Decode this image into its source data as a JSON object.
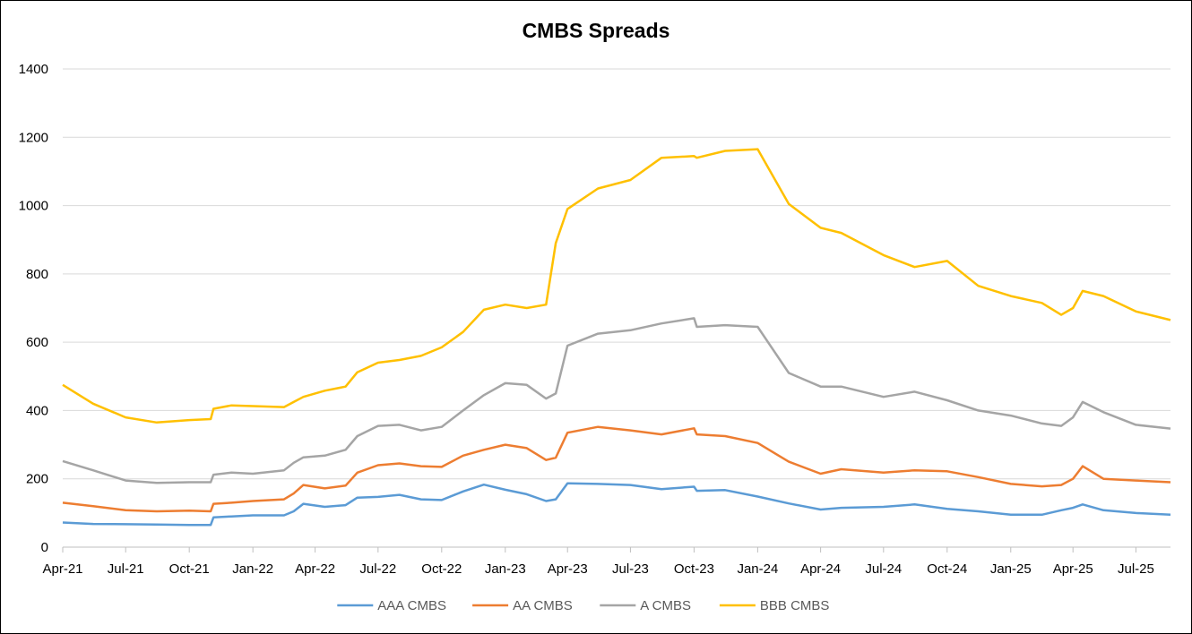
{
  "chart_data": {
    "type": "line",
    "title": "CMBS Spreads",
    "xlabel": "",
    "ylabel": "",
    "ylim": [
      0,
      1400
    ],
    "yticks": [
      0,
      200,
      400,
      600,
      800,
      1000,
      1200,
      1400
    ],
    "xlim": [
      "2021-04-01",
      "2025-08-20"
    ],
    "xticks": [
      {
        "date": "2021-04-01",
        "label": "Apr-21"
      },
      {
        "date": "2021-07-01",
        "label": "Jul-21"
      },
      {
        "date": "2021-10-01",
        "label": "Oct-21"
      },
      {
        "date": "2022-01-01",
        "label": "Jan-22"
      },
      {
        "date": "2022-04-01",
        "label": "Apr-22"
      },
      {
        "date": "2022-07-01",
        "label": "Jul-22"
      },
      {
        "date": "2022-10-01",
        "label": "Oct-22"
      },
      {
        "date": "2023-01-01",
        "label": "Jan-23"
      },
      {
        "date": "2023-04-01",
        "label": "Apr-23"
      },
      {
        "date": "2023-07-01",
        "label": "Jul-23"
      },
      {
        "date": "2023-10-01",
        "label": "Oct-23"
      },
      {
        "date": "2024-01-01",
        "label": "Jan-24"
      },
      {
        "date": "2024-04-01",
        "label": "Apr-24"
      },
      {
        "date": "2024-07-01",
        "label": "Jul-24"
      },
      {
        "date": "2024-10-01",
        "label": "Oct-24"
      },
      {
        "date": "2025-01-01",
        "label": "Jan-25"
      },
      {
        "date": "2025-04-01",
        "label": "Apr-25"
      },
      {
        "date": "2025-07-01",
        "label": "Jul-25"
      }
    ],
    "grid": true,
    "legend_position": "bottom",
    "series": [
      {
        "name": "AAA CMBS",
        "color": "#5B9BD5",
        "points": [
          [
            "2021-04-01",
            72
          ],
          [
            "2021-05-15",
            68
          ],
          [
            "2021-07-01",
            67
          ],
          [
            "2021-08-15",
            66
          ],
          [
            "2021-10-01",
            65
          ],
          [
            "2021-11-01",
            65
          ],
          [
            "2021-11-05",
            87
          ],
          [
            "2021-12-01",
            90
          ],
          [
            "2022-01-01",
            93
          ],
          [
            "2022-02-15",
            93
          ],
          [
            "2022-03-01",
            105
          ],
          [
            "2022-03-15",
            127
          ],
          [
            "2022-04-15",
            118
          ],
          [
            "2022-05-15",
            123
          ],
          [
            "2022-06-01",
            145
          ],
          [
            "2022-07-01",
            147
          ],
          [
            "2022-08-01",
            153
          ],
          [
            "2022-09-01",
            140
          ],
          [
            "2022-10-01",
            138
          ],
          [
            "2022-11-01",
            163
          ],
          [
            "2022-12-01",
            183
          ],
          [
            "2023-01-01",
            168
          ],
          [
            "2023-02-01",
            155
          ],
          [
            "2023-03-01",
            135
          ],
          [
            "2023-03-15",
            140
          ],
          [
            "2023-04-01",
            187
          ],
          [
            "2023-05-15",
            185
          ],
          [
            "2023-07-01",
            182
          ],
          [
            "2023-08-15",
            170
          ],
          [
            "2023-10-01",
            177
          ],
          [
            "2023-10-05",
            165
          ],
          [
            "2023-11-15",
            167
          ],
          [
            "2024-01-01",
            148
          ],
          [
            "2024-02-15",
            128
          ],
          [
            "2024-04-01",
            110
          ],
          [
            "2024-05-01",
            115
          ],
          [
            "2024-07-01",
            118
          ],
          [
            "2024-08-15",
            125
          ],
          [
            "2024-10-01",
            112
          ],
          [
            "2024-11-15",
            105
          ],
          [
            "2025-01-01",
            95
          ],
          [
            "2025-02-15",
            95
          ],
          [
            "2025-03-15",
            108
          ],
          [
            "2025-04-01",
            115
          ],
          [
            "2025-04-15",
            125
          ],
          [
            "2025-05-15",
            108
          ],
          [
            "2025-07-01",
            100
          ],
          [
            "2025-08-20",
            95
          ]
        ]
      },
      {
        "name": "AA CMBS",
        "color": "#ED7D31",
        "points": [
          [
            "2021-04-01",
            130
          ],
          [
            "2021-05-15",
            120
          ],
          [
            "2021-07-01",
            108
          ],
          [
            "2021-08-15",
            105
          ],
          [
            "2021-10-01",
            107
          ],
          [
            "2021-11-01",
            105
          ],
          [
            "2021-11-05",
            127
          ],
          [
            "2021-12-01",
            130
          ],
          [
            "2022-01-01",
            135
          ],
          [
            "2022-02-15",
            140
          ],
          [
            "2022-03-01",
            157
          ],
          [
            "2022-03-15",
            182
          ],
          [
            "2022-04-15",
            172
          ],
          [
            "2022-05-15",
            180
          ],
          [
            "2022-06-01",
            218
          ],
          [
            "2022-07-01",
            240
          ],
          [
            "2022-08-01",
            245
          ],
          [
            "2022-09-01",
            237
          ],
          [
            "2022-10-01",
            235
          ],
          [
            "2022-11-01",
            268
          ],
          [
            "2022-12-01",
            285
          ],
          [
            "2023-01-01",
            300
          ],
          [
            "2023-02-01",
            290
          ],
          [
            "2023-03-01",
            255
          ],
          [
            "2023-03-15",
            262
          ],
          [
            "2023-04-01",
            335
          ],
          [
            "2023-05-15",
            352
          ],
          [
            "2023-07-01",
            342
          ],
          [
            "2023-08-15",
            330
          ],
          [
            "2023-10-01",
            348
          ],
          [
            "2023-10-05",
            330
          ],
          [
            "2023-11-15",
            325
          ],
          [
            "2024-01-01",
            305
          ],
          [
            "2024-02-15",
            250
          ],
          [
            "2024-04-01",
            215
          ],
          [
            "2024-05-01",
            228
          ],
          [
            "2024-07-01",
            218
          ],
          [
            "2024-08-15",
            225
          ],
          [
            "2024-10-01",
            222
          ],
          [
            "2024-11-15",
            205
          ],
          [
            "2025-01-01",
            185
          ],
          [
            "2025-02-15",
            178
          ],
          [
            "2025-03-15",
            182
          ],
          [
            "2025-04-01",
            200
          ],
          [
            "2025-04-15",
            237
          ],
          [
            "2025-05-15",
            200
          ],
          [
            "2025-07-01",
            195
          ],
          [
            "2025-08-20",
            190
          ]
        ]
      },
      {
        "name": "A CMBS",
        "color": "#A5A5A5",
        "points": [
          [
            "2021-04-01",
            252
          ],
          [
            "2021-05-15",
            225
          ],
          [
            "2021-07-01",
            195
          ],
          [
            "2021-08-15",
            188
          ],
          [
            "2021-10-01",
            190
          ],
          [
            "2021-11-01",
            190
          ],
          [
            "2021-11-05",
            212
          ],
          [
            "2021-12-01",
            218
          ],
          [
            "2022-01-01",
            215
          ],
          [
            "2022-02-15",
            225
          ],
          [
            "2022-03-01",
            247
          ],
          [
            "2022-03-15",
            263
          ],
          [
            "2022-04-15",
            268
          ],
          [
            "2022-05-15",
            285
          ],
          [
            "2022-06-01",
            325
          ],
          [
            "2022-07-01",
            355
          ],
          [
            "2022-08-01",
            358
          ],
          [
            "2022-09-01",
            342
          ],
          [
            "2022-10-01",
            352
          ],
          [
            "2022-11-01",
            400
          ],
          [
            "2022-12-01",
            445
          ],
          [
            "2023-01-01",
            480
          ],
          [
            "2023-02-01",
            475
          ],
          [
            "2023-03-01",
            435
          ],
          [
            "2023-03-15",
            450
          ],
          [
            "2023-04-01",
            590
          ],
          [
            "2023-05-15",
            625
          ],
          [
            "2023-07-01",
            635
          ],
          [
            "2023-08-15",
            655
          ],
          [
            "2023-10-01",
            670
          ],
          [
            "2023-10-05",
            645
          ],
          [
            "2023-11-15",
            650
          ],
          [
            "2024-01-01",
            645
          ],
          [
            "2024-02-15",
            510
          ],
          [
            "2024-04-01",
            470
          ],
          [
            "2024-05-01",
            470
          ],
          [
            "2024-07-01",
            440
          ],
          [
            "2024-08-15",
            455
          ],
          [
            "2024-10-01",
            430
          ],
          [
            "2024-11-15",
            400
          ],
          [
            "2025-01-01",
            385
          ],
          [
            "2025-02-15",
            362
          ],
          [
            "2025-03-15",
            355
          ],
          [
            "2025-04-01",
            380
          ],
          [
            "2025-04-15",
            425
          ],
          [
            "2025-05-15",
            395
          ],
          [
            "2025-07-01",
            358
          ],
          [
            "2025-08-20",
            347
          ]
        ]
      },
      {
        "name": "BBB CMBS",
        "color": "#FFC000",
        "points": [
          [
            "2021-04-01",
            475
          ],
          [
            "2021-05-15",
            420
          ],
          [
            "2021-07-01",
            380
          ],
          [
            "2021-08-15",
            365
          ],
          [
            "2021-10-01",
            372
          ],
          [
            "2021-11-01",
            375
          ],
          [
            "2021-11-05",
            405
          ],
          [
            "2021-12-01",
            415
          ],
          [
            "2022-01-01",
            413
          ],
          [
            "2022-02-15",
            410
          ],
          [
            "2022-03-01",
            425
          ],
          [
            "2022-03-15",
            440
          ],
          [
            "2022-04-15",
            458
          ],
          [
            "2022-05-15",
            470
          ],
          [
            "2022-06-01",
            512
          ],
          [
            "2022-07-01",
            540
          ],
          [
            "2022-08-01",
            548
          ],
          [
            "2022-09-01",
            560
          ],
          [
            "2022-10-01",
            585
          ],
          [
            "2022-11-01",
            630
          ],
          [
            "2022-12-01",
            695
          ],
          [
            "2023-01-01",
            710
          ],
          [
            "2023-02-01",
            700
          ],
          [
            "2023-03-01",
            710
          ],
          [
            "2023-03-15",
            890
          ],
          [
            "2023-04-01",
            990
          ],
          [
            "2023-05-15",
            1050
          ],
          [
            "2023-07-01",
            1075
          ],
          [
            "2023-08-15",
            1140
          ],
          [
            "2023-10-01",
            1145
          ],
          [
            "2023-10-05",
            1140
          ],
          [
            "2023-11-15",
            1160
          ],
          [
            "2024-01-01",
            1165
          ],
          [
            "2024-02-15",
            1005
          ],
          [
            "2024-04-01",
            935
          ],
          [
            "2024-05-01",
            920
          ],
          [
            "2024-07-01",
            855
          ],
          [
            "2024-08-15",
            820
          ],
          [
            "2024-10-01",
            838
          ],
          [
            "2024-11-15",
            765
          ],
          [
            "2025-01-01",
            735
          ],
          [
            "2025-02-15",
            715
          ],
          [
            "2025-03-15",
            680
          ],
          [
            "2025-04-01",
            700
          ],
          [
            "2025-04-15",
            750
          ],
          [
            "2025-05-15",
            735
          ],
          [
            "2025-07-01",
            690
          ],
          [
            "2025-08-20",
            665
          ]
        ]
      }
    ]
  }
}
